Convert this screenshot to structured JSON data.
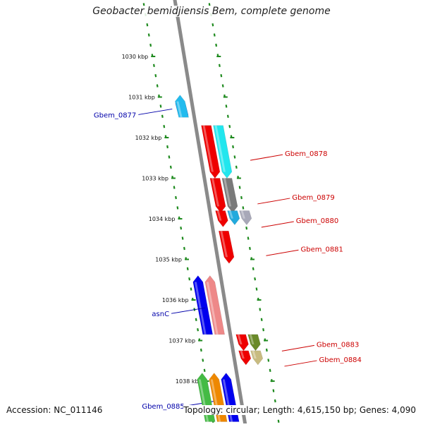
{
  "title": "Geobacter bemidjiensis Bem, complete genome",
  "accession": "Accession: NC_011146",
  "topology": "Topology: circular; Length: 4,615,150 bp; Genes: 4,090",
  "ticks": [
    {
      "label": "1030 kbp",
      "pos": 1030
    },
    {
      "label": "1031 kbp",
      "pos": 1031
    },
    {
      "label": "1032 kbp",
      "pos": 1032
    },
    {
      "label": "1033 kbp",
      "pos": 1033
    },
    {
      "label": "1034 kbp",
      "pos": 1034
    },
    {
      "label": "1035 kbp",
      "pos": 1035
    },
    {
      "label": "1036 kbp",
      "pos": 1036
    },
    {
      "label": "1037 kbp",
      "pos": 1037
    },
    {
      "label": "1038 kbp",
      "pos": 1038
    }
  ],
  "colors": {
    "axis": "#8a8a8a",
    "dots": "#1e8a1e",
    "label_forward": "#cc0000",
    "label_reverse": "#0000aa"
  },
  "genes": [
    {
      "label": "Gbem_0877",
      "strand": "-",
      "color": "#0000ee",
      "start": 1031.0,
      "end": 1031.45
    },
    {
      "label": "",
      "strand": "-",
      "color": "#22bbee",
      "start": 1030.95,
      "end": 1031.5
    },
    {
      "label": "Gbem_0878",
      "strand": "+",
      "color": "#ee0000",
      "start": 1031.7,
      "end": 1033.0
    },
    {
      "label": "",
      "strand": "+",
      "color": "#22e6ee",
      "start": 1031.7,
      "end": 1033.0
    },
    {
      "label": "Gbem_0879",
      "strand": "+",
      "color": "#ee0000",
      "start": 1033.0,
      "end": 1033.85
    },
    {
      "label": "",
      "strand": "+",
      "color": "#7a7a7a",
      "start": 1033.0,
      "end": 1033.85
    },
    {
      "label": "Gbem_0880",
      "strand": "+",
      "color": "#ee0000",
      "start": 1033.8,
      "end": 1034.2
    },
    {
      "label": "",
      "strand": "+",
      "color": "#22aadd",
      "start": 1033.8,
      "end": 1034.15
    },
    {
      "label": "",
      "strand": "+",
      "color": "#a8a8b8",
      "start": 1033.8,
      "end": 1034.15
    },
    {
      "label": "Gbem_0881",
      "strand": "+",
      "color": "#ee0000",
      "start": 1034.3,
      "end": 1035.1
    },
    {
      "label": "",
      "strand": "-",
      "color": "#ee8888",
      "start": 1035.4,
      "end": 1036.85
    },
    {
      "label": "asnC",
      "strand": "-",
      "color": "#0000ee",
      "start": 1035.4,
      "end": 1036.85
    },
    {
      "label": "Gbem_0883",
      "strand": "+",
      "color": "#ee0000",
      "start": 1036.85,
      "end": 1037.25
    },
    {
      "label": "",
      "strand": "+",
      "color": "#6a8a2a",
      "start": 1036.85,
      "end": 1037.25
    },
    {
      "label": "Gbem_0884",
      "strand": "+",
      "color": "#ee0000",
      "start": 1037.25,
      "end": 1037.6
    },
    {
      "label": "",
      "strand": "+",
      "color": "#c8bb80",
      "start": 1037.25,
      "end": 1037.6
    },
    {
      "label": "Gbem_0885",
      "strand": "-",
      "color": "#0000ee",
      "start": 1037.8,
      "end": 1039.0
    },
    {
      "label": "",
      "strand": "-",
      "color": "#ee8800",
      "start": 1037.8,
      "end": 1039.0
    },
    {
      "label": "",
      "strand": "-",
      "color": "#44bb44",
      "start": 1037.8,
      "end": 1039.0
    }
  ]
}
